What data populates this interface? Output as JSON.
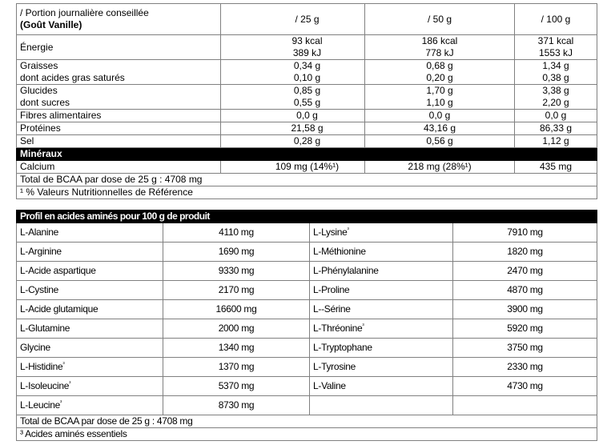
{
  "nutrition": {
    "header": {
      "label": "/ Portion journalière conseillée",
      "flavor": "(Goût Vanille)",
      "cols": [
        "/ 25 g",
        "/ 50 g",
        "/ 100 g"
      ]
    },
    "energy": {
      "label": "Énergie",
      "kcal": [
        "93 kcal",
        "186 kcal",
        "371 kcal"
      ],
      "kj": [
        "389 kJ",
        "778 kJ",
        "1553 kJ"
      ]
    },
    "fat": {
      "label": "Graisses",
      "sub_label": "dont acides gras saturés",
      "values": [
        "0,34 g",
        "0,68 g",
        "1,34 g"
      ],
      "sub_values": [
        "0,10 g",
        "0,20 g",
        "0,38 g"
      ]
    },
    "carbs": {
      "label": "Glucides",
      "sub_label": "dont sucres",
      "values": [
        "0,85 g",
        "1,70 g",
        "3,38 g"
      ],
      "sub_values": [
        "0,55 g",
        "1,10 g",
        "2,20 g"
      ]
    },
    "fibre": {
      "label": "Fibres alimentaires",
      "values": [
        "0,0 g",
        "0,0 g",
        "0,0 g"
      ]
    },
    "protein": {
      "label": "Protéines",
      "values": [
        "21,58 g",
        "43,16 g",
        "86,33 g"
      ]
    },
    "salt": {
      "label": "Sel",
      "values": [
        "0,28 g",
        "0,56 g",
        "1,12 g"
      ]
    },
    "minerals_title": "Minéraux",
    "calcium": {
      "label": "Calcium",
      "values": [
        "109 mg (14%¹)",
        "218 mg (28%¹)",
        "435 mg"
      ]
    },
    "bcaa": "Total de BCAA par dose de 25 g : 4708 mg",
    "footnote": "¹ % Valeurs Nutritionnelles de Référence"
  },
  "amino": {
    "title": "Profil en acides aminés pour 100 g de produit",
    "rows": [
      {
        "l1": "L-Alanine",
        "s1": "",
        "v1": "4110 mg",
        "l2": "L-Lysine",
        "s2": "³",
        "v2": "7910 mg"
      },
      {
        "l1": "L-Arginine",
        "s1": "",
        "v1": "1690 mg",
        "l2": "L-Méthionine",
        "s2": "",
        "v2": "1820 mg"
      },
      {
        "l1": "L-Acide aspartique",
        "s1": "",
        "v1": "9330 mg",
        "l2": "L-Phénylalanine",
        "s2": "",
        "v2": "2470 mg"
      },
      {
        "l1": "L-Cystine",
        "s1": "",
        "v1": "2170 mg",
        "l2": "L-Proline",
        "s2": "",
        "v2": "4870 mg"
      },
      {
        "l1": "L-Acide glutamique",
        "s1": "",
        "v1": "16600 mg",
        "l2": "L--Sérine",
        "s2": "",
        "v2": "3900 mg"
      },
      {
        "l1": "L-Glutamine",
        "s1": "",
        "v1": "2000 mg",
        "l2": "L-Thréonine",
        "s2": "³",
        "v2": "5920 mg"
      },
      {
        "l1": "Glycine",
        "s1": "",
        "v1": "1340 mg",
        "l2": "L-Tryptophane",
        "s2": "",
        "v2": "3750 mg"
      },
      {
        "l1": "L-Histidine",
        "s1": "³",
        "v1": "1370 mg",
        "l2": "L-Tyrosine",
        "s2": "",
        "v2": "2330 mg"
      },
      {
        "l1": "L-Isoleucine",
        "s1": "³",
        "v1": "5370 mg",
        "l2": "L-Valine",
        "s2": "",
        "v2": "4730 mg"
      },
      {
        "l1": "L-Leucine",
        "s1": "³",
        "v1": "8730 mg",
        "l2": "",
        "s2": "",
        "v2": ""
      }
    ],
    "bcaa": "Total de BCAA par dose de 25 g : 4708 mg",
    "footnote": "³ Acides aminés essentiels"
  }
}
